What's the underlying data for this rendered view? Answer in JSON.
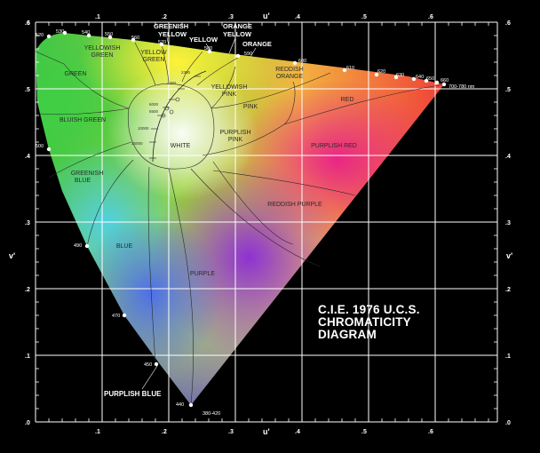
{
  "title_lines": [
    "C.I.E. 1976 U.C.S.",
    "CHROMATICITY",
    "DIAGRAM"
  ],
  "axes": {
    "x_label": "u'",
    "y_label": "v'",
    "x_ticks": [
      ".1",
      ".2",
      ".3",
      ".4",
      ".5",
      ".6"
    ],
    "y_ticks": [
      ".1",
      ".2",
      ".3",
      ".4",
      ".5",
      ".6"
    ],
    "origin_label": ".0"
  },
  "top_labels": {
    "greenish_yellow": [
      "GREENISH",
      "YELLOW"
    ],
    "yellow": "YELLOW",
    "orange_yellow": [
      "ORANGE",
      "YELLOW"
    ],
    "orange": "ORANGE"
  },
  "regions": {
    "green": "GREEN",
    "yellowish_green": [
      "YELLOWISH",
      "GREEN"
    ],
    "yellow_green": [
      "YELLOW",
      "GREEN"
    ],
    "bluish_green": "BLUISH GREEN",
    "greenish_blue": [
      "GREENISH",
      "BLUE"
    ],
    "blue": "BLUE",
    "purple": "PURPLE",
    "white": "WHITE",
    "yellowish_pink": [
      "YELLOWISH",
      "PINK"
    ],
    "reddish_orange": [
      "REDDISH",
      "ORANGE"
    ],
    "red": "RED",
    "pink": "PINK",
    "purplish_pink": [
      "PURPLISH",
      "PINK"
    ],
    "purplish_red": "PURPLISH RED",
    "reddish_purple": "REDDISH PURPLE",
    "purplish_blue": "PURPLISH BLUE"
  },
  "wavelength_labels": [
    "520",
    "530",
    "540",
    "550",
    "560",
    "570",
    "580",
    "590",
    "600",
    "610",
    "620",
    "630",
    "640",
    "650",
    "660",
    "700-780 nm",
    "500",
    "490",
    "470",
    "450",
    "440",
    "380-420"
  ],
  "temperature_labels": [
    "2300",
    "4000",
    "6000",
    "6500",
    "10000",
    "25000"
  ],
  "colors": {
    "background": "#000000",
    "grid": "#ffffff",
    "title": "#ffffff"
  }
}
